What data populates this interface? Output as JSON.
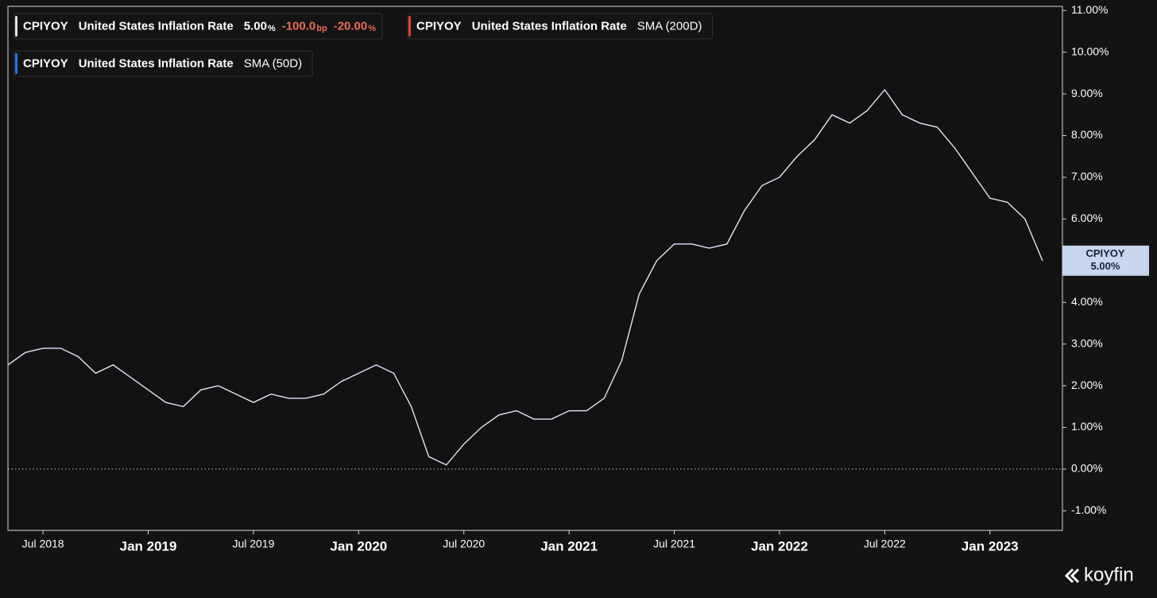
{
  "chart_data": {
    "type": "line",
    "brand": "koyfin",
    "x": [
      "2018-05",
      "2018-06",
      "2018-07",
      "2018-08",
      "2018-09",
      "2018-10",
      "2018-11",
      "2018-12",
      "2019-01",
      "2019-02",
      "2019-03",
      "2019-04",
      "2019-05",
      "2019-06",
      "2019-07",
      "2019-08",
      "2019-09",
      "2019-10",
      "2019-11",
      "2019-12",
      "2020-01",
      "2020-02",
      "2020-03",
      "2020-04",
      "2020-05",
      "2020-06",
      "2020-07",
      "2020-08",
      "2020-09",
      "2020-10",
      "2020-11",
      "2020-12",
      "2021-01",
      "2021-02",
      "2021-03",
      "2021-04",
      "2021-05",
      "2021-06",
      "2021-07",
      "2021-08",
      "2021-09",
      "2021-10",
      "2021-11",
      "2021-12",
      "2022-01",
      "2022-02",
      "2022-03",
      "2022-04",
      "2022-05",
      "2022-06",
      "2022-07",
      "2022-08",
      "2022-09",
      "2022-10",
      "2022-11",
      "2022-12",
      "2023-01",
      "2023-02",
      "2023-03",
      "2023-04"
    ],
    "series": [
      {
        "name": "CPIYOY",
        "description": "United States Inflation Rate",
        "color": "#dce7f8",
        "legend_stats": [
          {
            "value": "5.00",
            "unit": "%"
          },
          {
            "value": "-100.0",
            "unit": "bp"
          },
          {
            "value": "-20.00",
            "unit": "%"
          }
        ],
        "last_value_label": "5.00%",
        "values": [
          2.5,
          2.8,
          2.9,
          2.9,
          2.7,
          2.3,
          2.5,
          2.2,
          1.9,
          1.6,
          1.5,
          1.9,
          2.0,
          1.8,
          1.6,
          1.8,
          1.7,
          1.7,
          1.8,
          2.1,
          2.3,
          2.5,
          2.3,
          1.5,
          0.3,
          0.1,
          0.6,
          1.0,
          1.3,
          1.4,
          1.2,
          1.2,
          1.4,
          1.4,
          1.7,
          2.6,
          4.2,
          5.0,
          5.4,
          5.4,
          5.3,
          5.4,
          6.2,
          6.8,
          7.0,
          7.5,
          7.9,
          8.5,
          8.3,
          8.6,
          9.1,
          8.5,
          8.3,
          8.2,
          7.7,
          7.1,
          6.5,
          6.4,
          6.0,
          5.0
        ]
      }
    ],
    "indicators": [
      {
        "name": "CPIYOY",
        "description": "United States Inflation Rate",
        "study": "SMA (200D)",
        "color": "#e0442c"
      },
      {
        "name": "CPIYOY",
        "description": "United States Inflation Rate",
        "study": "SMA (50D)",
        "color": "#1e7be8"
      }
    ],
    "xlim": [
      "2018-05",
      "2023-05"
    ],
    "xticks": [
      {
        "value": "2018-07",
        "label": "Jul 2018"
      },
      {
        "value": "2019-01",
        "label": "Jan 2019"
      },
      {
        "value": "2019-07",
        "label": "Jul 2019"
      },
      {
        "value": "2020-01",
        "label": "Jan 2020"
      },
      {
        "value": "2020-07",
        "label": "Jul 2020"
      },
      {
        "value": "2021-01",
        "label": "Jan 2021"
      },
      {
        "value": "2021-07",
        "label": "Jul 2021"
      },
      {
        "value": "2022-01",
        "label": "Jan 2022"
      },
      {
        "value": "2022-07",
        "label": "Jul 2022"
      },
      {
        "value": "2023-01",
        "label": "Jan 2023"
      }
    ],
    "ylim": [
      -1.47,
      11.1
    ],
    "yticks": [
      {
        "value": -1,
        "label": "-1.00%"
      },
      {
        "value": 0,
        "label": "0.00%"
      },
      {
        "value": 1,
        "label": "1.00%"
      },
      {
        "value": 2,
        "label": "2.00%"
      },
      {
        "value": 3,
        "label": "3.00%"
      },
      {
        "value": 4,
        "label": "4.00%"
      },
      {
        "value": 5,
        "label": "5.00%"
      },
      {
        "value": 6,
        "label": "6.00%"
      },
      {
        "value": 7,
        "label": "7.00%"
      },
      {
        "value": 8,
        "label": "8.00%"
      },
      {
        "value": 9,
        "label": "9.00%"
      },
      {
        "value": 10,
        "label": "10.00%"
      },
      {
        "value": 11,
        "label": "11.00%"
      }
    ],
    "y_axis_side": "right",
    "reference_line": 0,
    "grid": false
  }
}
